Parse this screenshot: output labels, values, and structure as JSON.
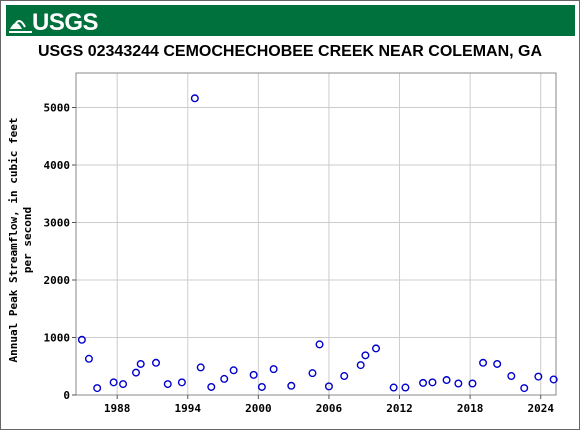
{
  "banner": {
    "logo_text": "USGS",
    "color": "#00703c"
  },
  "chart_data": {
    "type": "scatter",
    "title": "USGS 02343244 CEMOCHECHOBEE CREEK NEAR COLEMAN, GA",
    "xlabel": "",
    "ylabel_lines": [
      "Annual Peak Streamflow, in cubic feet",
      "per second"
    ],
    "xlim": [
      1984.5,
      2025.3
    ],
    "ylim": [
      0,
      5600
    ],
    "xticks": [
      1988,
      1994,
      2000,
      2006,
      2012,
      2018,
      2024
    ],
    "yticks": [
      0,
      1000,
      2000,
      3000,
      4000,
      5000
    ],
    "grid": true,
    "marker": "open-circle",
    "marker_color": "#0000cc",
    "points": [
      {
        "x": 1985.0,
        "y": 960
      },
      {
        "x": 1985.6,
        "y": 630
      },
      {
        "x": 1986.3,
        "y": 120
      },
      {
        "x": 1987.7,
        "y": 220
      },
      {
        "x": 1988.5,
        "y": 190
      },
      {
        "x": 1989.6,
        "y": 390
      },
      {
        "x": 1990.0,
        "y": 540
      },
      {
        "x": 1991.3,
        "y": 560
      },
      {
        "x": 1992.3,
        "y": 190
      },
      {
        "x": 1993.5,
        "y": 220
      },
      {
        "x": 1994.6,
        "y": 5160
      },
      {
        "x": 1995.1,
        "y": 480
      },
      {
        "x": 1996.0,
        "y": 140
      },
      {
        "x": 1997.1,
        "y": 280
      },
      {
        "x": 1997.9,
        "y": 430
      },
      {
        "x": 1999.6,
        "y": 350
      },
      {
        "x": 2000.3,
        "y": 140
      },
      {
        "x": 2001.3,
        "y": 450
      },
      {
        "x": 2002.8,
        "y": 160
      },
      {
        "x": 2004.6,
        "y": 380
      },
      {
        "x": 2005.2,
        "y": 880
      },
      {
        "x": 2006.0,
        "y": 150
      },
      {
        "x": 2007.3,
        "y": 330
      },
      {
        "x": 2008.7,
        "y": 520
      },
      {
        "x": 2009.1,
        "y": 690
      },
      {
        "x": 2010.0,
        "y": 810
      },
      {
        "x": 2011.5,
        "y": 130
      },
      {
        "x": 2012.5,
        "y": 130
      },
      {
        "x": 2014.0,
        "y": 210
      },
      {
        "x": 2014.8,
        "y": 220
      },
      {
        "x": 2016.0,
        "y": 260
      },
      {
        "x": 2017.0,
        "y": 200
      },
      {
        "x": 2018.2,
        "y": 200
      },
      {
        "x": 2019.1,
        "y": 560
      },
      {
        "x": 2020.3,
        "y": 540
      },
      {
        "x": 2021.5,
        "y": 330
      },
      {
        "x": 2022.6,
        "y": 120
      },
      {
        "x": 2023.8,
        "y": 320
      },
      {
        "x": 2025.1,
        "y": 270
      }
    ]
  }
}
